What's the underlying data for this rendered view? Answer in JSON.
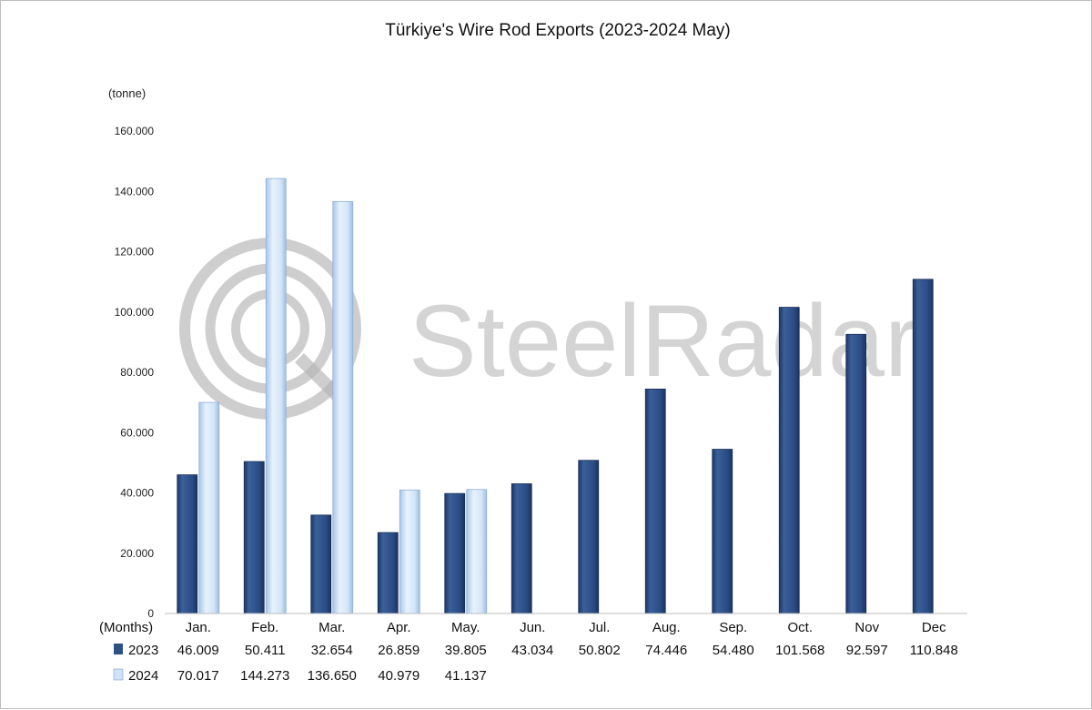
{
  "chart_data": {
    "type": "bar",
    "title": "Türkiye's Wire Rod Exports (2023-2024 May)",
    "unit_label": "(tonne)",
    "xlabel": "(Months)",
    "categories": [
      "Jan.",
      "Feb.",
      "Mar.",
      "Apr.",
      "May.",
      "Jun.",
      "Jul.",
      "Aug.",
      "Sep.",
      "Oct.",
      "Nov",
      "Dec"
    ],
    "series": [
      {
        "name": "2023",
        "color": "#2e5088",
        "values": [
          46009,
          50411,
          32654,
          26859,
          39805,
          43034,
          50802,
          74446,
          54480,
          101568,
          92597,
          110848
        ],
        "labels": [
          "46.009",
          "50.411",
          "32.654",
          "26.859",
          "39.805",
          "43.034",
          "50.802",
          "74.446",
          "54.480",
          "101.568",
          "92.597",
          "110.848"
        ]
      },
      {
        "name": "2024",
        "color": "#cfe2f7",
        "values": [
          70017,
          144273,
          136650,
          40979,
          41137,
          null,
          null,
          null,
          null,
          null,
          null,
          null
        ],
        "labels": [
          "70.017",
          "144.273",
          "136.650",
          "40.979",
          "41.137",
          "",
          "",
          "",
          "",
          "",
          "",
          ""
        ]
      }
    ],
    "ylim": [
      0,
      160000
    ],
    "yticks": [
      0,
      20000,
      40000,
      60000,
      80000,
      100000,
      120000,
      140000,
      160000
    ],
    "ytick_labels": [
      "0",
      "20.000",
      "40.000",
      "60.000",
      "80.000",
      "100.000",
      "120.000",
      "140.000",
      "160.000"
    ],
    "grid": false,
    "legend": "data table below chart"
  },
  "watermark": {
    "text": "SteelRadar",
    "icon": "steelradar-logo-icon"
  }
}
